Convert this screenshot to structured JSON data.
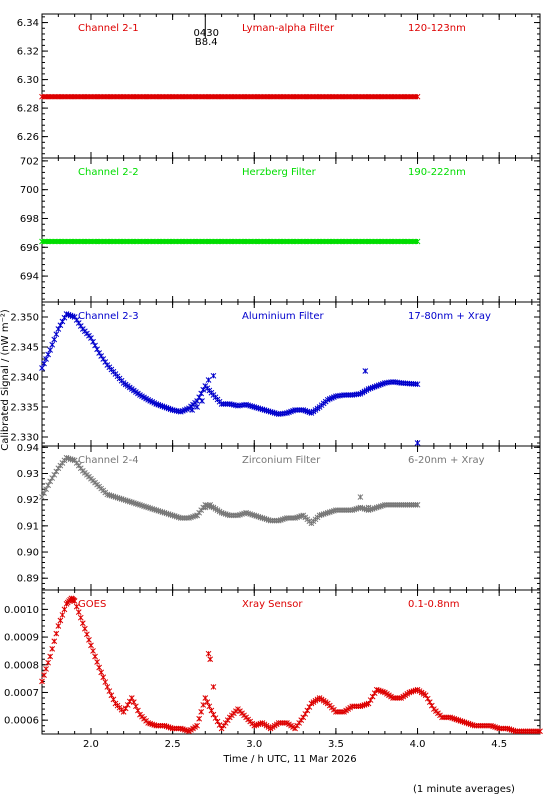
{
  "figure": {
    "xlabel": "Time / h UTC, 11 Mar 2026",
    "ylabel": "Calibrated Signal / (nW m⁻²)",
    "footnote": "(1 minute averages)",
    "xlim": [
      1.7,
      4.75
    ],
    "xticks": [
      2.0,
      2.5,
      3.0,
      3.5,
      4.0,
      4.5
    ],
    "xtick_labels": [
      "2.0",
      "2.5",
      "3.0",
      "3.5",
      "4.0",
      "4.5"
    ],
    "marker_annotation": {
      "x": 2.7,
      "line1": "0430",
      "line2": "B8.4"
    }
  },
  "chart_data": [
    {
      "type": "scatter",
      "panel": "Channel 2-1",
      "labels": [
        "Channel 2-1",
        "Lyman-alpha Filter",
        "120-123nm"
      ],
      "color": "#dd0000",
      "ylim": [
        6.245,
        6.346
      ],
      "yticks": [
        6.26,
        6.28,
        6.3,
        6.32,
        6.34
      ],
      "ytick_labels": [
        "6.26",
        "6.28",
        "6.30",
        "6.32",
        "6.34"
      ],
      "series": [
        {
          "x_range": [
            1.7,
            4.0
          ],
          "y": 6.288
        }
      ]
    },
    {
      "type": "scatter",
      "panel": "Channel 2-2",
      "labels": [
        "Channel 2-2",
        "Herzberg Filter",
        "190-222nm"
      ],
      "color": "#00dd00",
      "ylim": [
        692.2,
        702.2
      ],
      "yticks": [
        694,
        696,
        698,
        700,
        702
      ],
      "ytick_labels": [
        "694",
        "696",
        "698",
        "700",
        "702"
      ],
      "series": [
        {
          "x_range": [
            1.7,
            4.0
          ],
          "y": 696.4
        }
      ]
    },
    {
      "type": "scatter",
      "panel": "Channel 2-3",
      "labels": [
        "Channel 2-3",
        "Aluminium Filter",
        "17-80nm + Xray"
      ],
      "color": "#0000cc",
      "ylim": [
        2.3285,
        2.3525
      ],
      "yticks": [
        2.33,
        2.335,
        2.34,
        2.345,
        2.35
      ],
      "ytick_labels": [
        "2.330",
        "2.335",
        "2.340",
        "2.345",
        "2.350"
      ],
      "series": [
        {
          "x": [
            1.7,
            1.75,
            1.8,
            1.85,
            1.9,
            1.95,
            2.0,
            2.05,
            2.1,
            2.15,
            2.2,
            2.25,
            2.3,
            2.35,
            2.4,
            2.45,
            2.5,
            2.55,
            2.6,
            2.65,
            2.7,
            2.75,
            2.8,
            2.85,
            2.9,
            2.95,
            3.0,
            3.05,
            3.1,
            3.15,
            3.2,
            3.25,
            3.3,
            3.35,
            3.4,
            3.45,
            3.5,
            3.55,
            3.6,
            3.65,
            3.7,
            3.75,
            3.8,
            3.85,
            3.9,
            3.95,
            4.0
          ],
          "y": [
            2.3415,
            2.3445,
            2.348,
            2.3505,
            2.35,
            2.348,
            2.3465,
            2.344,
            2.342,
            2.3405,
            2.339,
            2.338,
            2.337,
            2.3362,
            2.3355,
            2.335,
            2.3345,
            2.3342,
            2.3348,
            2.336,
            2.3385,
            2.337,
            2.3355,
            2.3355,
            2.3352,
            2.3354,
            2.335,
            2.3346,
            2.3342,
            2.3338,
            2.334,
            2.3345,
            2.3345,
            2.334,
            2.335,
            2.3362,
            2.3368,
            2.337,
            2.337,
            2.3372,
            2.338,
            2.3385,
            2.339,
            2.3392,
            2.339,
            2.3389,
            2.3388
          ]
        },
        {
          "x": [
            2.62,
            2.65,
            2.68,
            2.72,
            2.75,
            3.68,
            4.0
          ],
          "y": [
            2.3345,
            2.335,
            2.336,
            2.3395,
            2.3402,
            2.341,
            2.329
          ]
        }
      ]
    },
    {
      "type": "scatter",
      "panel": "Channel 2-4",
      "labels": [
        "Channel 2-4",
        "Zirconium Filter",
        "6-20nm + Xray"
      ],
      "color": "#777777",
      "ylim": [
        0.8855,
        0.9405
      ],
      "yticks": [
        0.89,
        0.9,
        0.91,
        0.92,
        0.93,
        0.94
      ],
      "ytick_labels": [
        "0.89",
        "0.90",
        "0.91",
        "0.92",
        "0.93",
        "0.94"
      ],
      "series": [
        {
          "x": [
            1.7,
            1.75,
            1.8,
            1.85,
            1.9,
            1.95,
            2.0,
            2.05,
            2.1,
            2.15,
            2.2,
            2.25,
            2.3,
            2.35,
            2.4,
            2.45,
            2.5,
            2.55,
            2.6,
            2.65,
            2.7,
            2.75,
            2.8,
            2.85,
            2.9,
            2.95,
            3.0,
            3.05,
            3.1,
            3.15,
            3.2,
            3.25,
            3.3,
            3.35,
            3.4,
            3.45,
            3.5,
            3.55,
            3.6,
            3.65,
            3.7,
            3.75,
            3.8,
            3.85,
            3.9,
            3.95,
            4.0
          ],
          "y": [
            0.921,
            0.927,
            0.932,
            0.936,
            0.935,
            0.931,
            0.928,
            0.925,
            0.922,
            0.921,
            0.92,
            0.919,
            0.918,
            0.917,
            0.916,
            0.915,
            0.914,
            0.913,
            0.913,
            0.914,
            0.918,
            0.917,
            0.915,
            0.914,
            0.914,
            0.915,
            0.914,
            0.913,
            0.912,
            0.912,
            0.913,
            0.913,
            0.914,
            0.911,
            0.914,
            0.915,
            0.916,
            0.916,
            0.916,
            0.917,
            0.916,
            0.917,
            0.918,
            0.918,
            0.918,
            0.918,
            0.918
          ]
        },
        {
          "x": [
            2.65,
            2.7,
            2.73,
            3.65,
            3.7
          ],
          "y": [
            0.914,
            0.917,
            0.918,
            0.921,
            0.917
          ]
        }
      ]
    },
    {
      "type": "scatter",
      "panel": "GOES",
      "labels": [
        "GOES",
        "Xray Sensor",
        "0.1-0.8nm"
      ],
      "color": "#dd0000",
      "ylim": [
        0.00055,
        0.00107
      ],
      "yticks": [
        0.0006,
        0.0007,
        0.0008,
        0.0009,
        0.001
      ],
      "ytick_labels": [
        "0.0006",
        "0.0007",
        "0.0008",
        "0.0009",
        "0.0010"
      ],
      "series": [
        {
          "x": [
            1.7,
            1.75,
            1.8,
            1.85,
            1.88,
            1.9,
            1.95,
            2.0,
            2.05,
            2.1,
            2.15,
            2.2,
            2.25,
            2.3,
            2.35,
            2.4,
            2.45,
            2.5,
            2.55,
            2.6,
            2.65,
            2.7,
            2.75,
            2.8,
            2.85,
            2.9,
            2.95,
            3.0,
            3.05,
            3.1,
            3.15,
            3.2,
            3.25,
            3.3,
            3.35,
            3.4,
            3.45,
            3.5,
            3.55,
            3.6,
            3.65,
            3.7,
            3.75,
            3.8,
            3.85,
            3.9,
            3.95,
            4.0,
            4.05,
            4.1,
            4.15,
            4.2,
            4.25,
            4.3,
            4.35,
            4.4,
            4.45,
            4.5,
            4.55,
            4.6,
            4.65,
            4.7,
            4.75
          ],
          "y": [
            0.00074,
            0.00083,
            0.00094,
            0.00102,
            0.00104,
            0.00103,
            0.00095,
            0.00087,
            0.00079,
            0.00072,
            0.00066,
            0.00063,
            0.00068,
            0.00062,
            0.00059,
            0.00058,
            0.00058,
            0.00057,
            0.00057,
            0.00056,
            0.00058,
            0.00068,
            0.00062,
            0.00057,
            0.00061,
            0.00064,
            0.00061,
            0.00058,
            0.00059,
            0.00057,
            0.00059,
            0.00059,
            0.00057,
            0.00061,
            0.00066,
            0.00068,
            0.00066,
            0.00063,
            0.00063,
            0.00065,
            0.00065,
            0.00066,
            0.00071,
            0.0007,
            0.00068,
            0.00068,
            0.0007,
            0.00071,
            0.00069,
            0.00064,
            0.00061,
            0.00061,
            0.0006,
            0.00059,
            0.00058,
            0.00058,
            0.00058,
            0.00057,
            0.00057,
            0.00056,
            0.00056,
            0.00056,
            0.00056
          ]
        },
        {
          "x": [
            2.72,
            2.73,
            2.75
          ],
          "y": [
            0.00084,
            0.00082,
            0.00072
          ]
        }
      ]
    }
  ]
}
